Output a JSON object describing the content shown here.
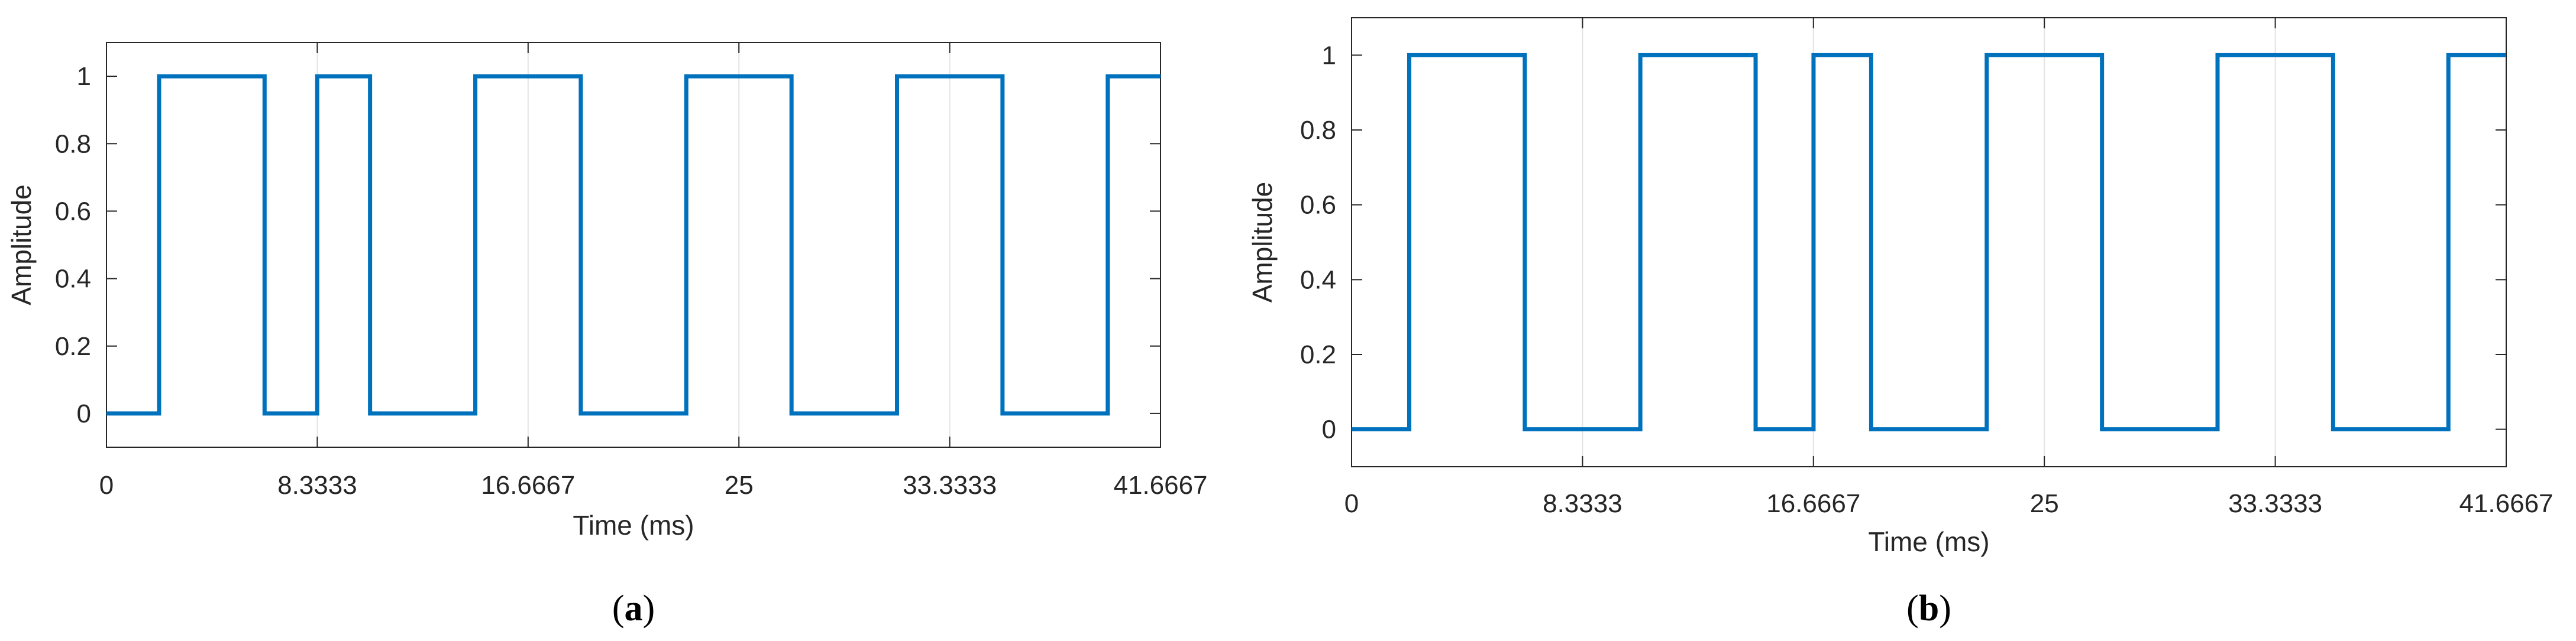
{
  "chart_data": [
    {
      "type": "line",
      "panel_label": "a",
      "xlabel": "Time (ms)",
      "ylabel": "Amplitude",
      "xlim": [
        0,
        41.6667
      ],
      "ylim": [
        -0.1,
        1.1
      ],
      "x_ticks": [
        0,
        8.3333,
        16.6667,
        25,
        33.3333,
        41.6667
      ],
      "x_tick_labels": [
        "0",
        "8.3333",
        "16.6667",
        "25",
        "33.3333",
        "41.6667"
      ],
      "y_ticks": [
        0,
        0.2,
        0.4,
        0.6,
        0.8,
        1
      ],
      "y_tick_labels": [
        "0",
        "0.2",
        "0.4",
        "0.6",
        "0.8",
        "1"
      ],
      "grid": "x-only",
      "color": "#0072BD",
      "series": [
        {
          "x": [
            0,
            2.08,
            2.08,
            6.25,
            6.25,
            8.33,
            8.33,
            10.42,
            10.42,
            14.58,
            14.58,
            18.75,
            18.75,
            22.92,
            22.92,
            27.08,
            27.08,
            31.25,
            31.25,
            35.42,
            35.42,
            39.58,
            39.58,
            41.6667
          ],
          "y": [
            0,
            0,
            1,
            1,
            0,
            0,
            1,
            1,
            0,
            0,
            1,
            1,
            0,
            0,
            1,
            1,
            0,
            0,
            1,
            1,
            0,
            0,
            1,
            1
          ]
        }
      ]
    },
    {
      "type": "line",
      "panel_label": "b",
      "xlabel": "Time (ms)",
      "ylabel": "Amplitude",
      "xlim": [
        0,
        41.6667
      ],
      "ylim": [
        -0.1,
        1.1
      ],
      "x_ticks": [
        0,
        8.3333,
        16.6667,
        25,
        33.3333,
        41.6667
      ],
      "x_tick_labels": [
        "0",
        "8.3333",
        "16.6667",
        "25",
        "33.3333",
        "41.6667"
      ],
      "y_ticks": [
        0,
        0.2,
        0.4,
        0.6,
        0.8,
        1
      ],
      "y_tick_labels": [
        "0",
        "0.2",
        "0.4",
        "0.6",
        "0.8",
        "1"
      ],
      "grid": "x-only",
      "color": "#0072BD",
      "series": [
        {
          "x": [
            0,
            2.08,
            2.08,
            6.25,
            6.25,
            10.42,
            10.42,
            14.58,
            14.58,
            16.67,
            16.67,
            18.75,
            18.75,
            22.92,
            22.92,
            27.08,
            27.08,
            31.25,
            31.25,
            35.42,
            35.42,
            39.58,
            39.58,
            41.6667
          ],
          "y": [
            0,
            0,
            1,
            1,
            0,
            0,
            1,
            1,
            0,
            0,
            1,
            1,
            0,
            0,
            1,
            1,
            0,
            0,
            1,
            1,
            0,
            0,
            1,
            1
          ]
        }
      ]
    }
  ]
}
